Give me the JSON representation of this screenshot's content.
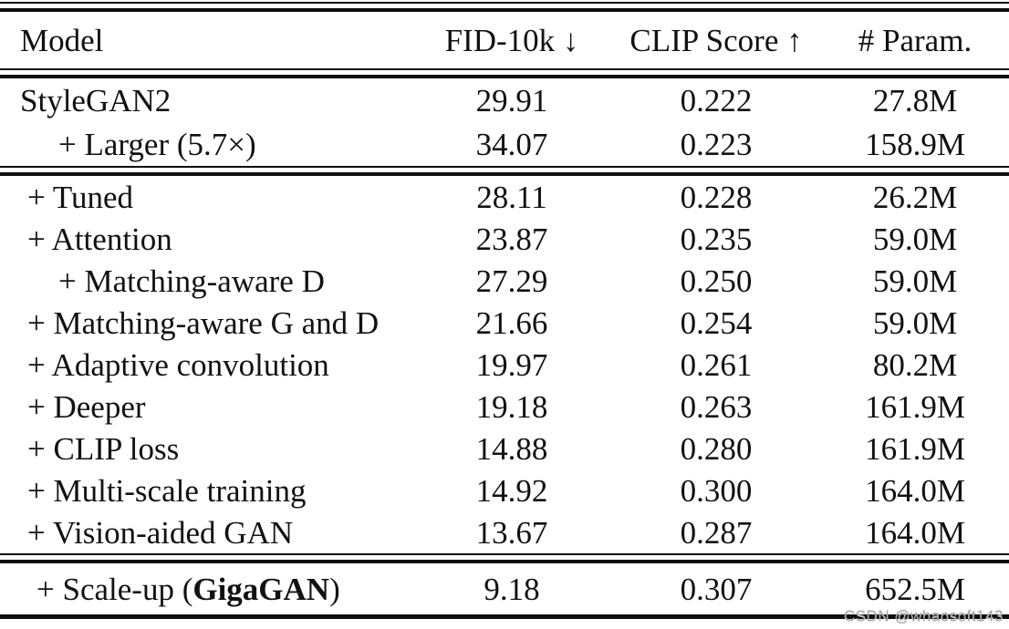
{
  "header": {
    "columns": [
      {
        "label": "Model"
      },
      {
        "label": "FID-10k ↓"
      },
      {
        "label": "CLIP Score ↑"
      },
      {
        "label": "# Param."
      }
    ]
  },
  "sections": [
    {
      "name": "baseline",
      "rows": [
        {
          "model": [
            {
              "t": "StyleGAN2"
            }
          ],
          "indent": "base",
          "fid": "29.91",
          "clip": "0.222",
          "params": "27.8M"
        },
        {
          "model": [
            {
              "t": "+ Larger (5.7×)"
            }
          ],
          "indent": "sub",
          "fid": "34.07",
          "clip": "0.223",
          "params": "158.9M"
        }
      ]
    },
    {
      "name": "ablations",
      "rows": [
        {
          "model": [
            {
              "t": "+ Tuned"
            }
          ],
          "indent": "main",
          "fid": "28.11",
          "clip": "0.228",
          "params": "26.2M"
        },
        {
          "model": [
            {
              "t": "+ Attention"
            }
          ],
          "indent": "main",
          "fid": "23.87",
          "clip": "0.235",
          "params": "59.0M"
        },
        {
          "model": [
            {
              "t": "+ Matching-aware D"
            }
          ],
          "indent": "sub",
          "fid": "27.29",
          "clip": "0.250",
          "params": "59.0M"
        },
        {
          "model": [
            {
              "t": "+ Matching-aware G and D"
            }
          ],
          "indent": "main",
          "fid": "21.66",
          "clip": "0.254",
          "params": "59.0M"
        },
        {
          "model": [
            {
              "t": "+ Adaptive convolution"
            }
          ],
          "indent": "main",
          "fid": "19.97",
          "clip": "0.261",
          "params": "80.2M"
        },
        {
          "model": [
            {
              "t": "+ Deeper"
            }
          ],
          "indent": "main",
          "fid": "19.18",
          "clip": "0.263",
          "params": "161.9M"
        },
        {
          "model": [
            {
              "t": "+ CLIP loss"
            }
          ],
          "indent": "main",
          "fid": "14.88",
          "clip": "0.280",
          "params": "161.9M"
        },
        {
          "model": [
            {
              "t": "+ Multi-scale training"
            }
          ],
          "indent": "main",
          "fid": "14.92",
          "clip": "0.300",
          "params": "164.0M"
        },
        {
          "model": [
            {
              "t": "+ Vision-aided GAN"
            }
          ],
          "indent": "main",
          "fid": "13.67",
          "clip": "0.287",
          "params": "164.0M"
        }
      ]
    },
    {
      "name": "final",
      "rows": [
        {
          "model": [
            {
              "t": "+ Scale-up ("
            },
            {
              "t": "GigaGAN",
              "bold": true
            },
            {
              "t": ")"
            }
          ],
          "indent": "final",
          "fid": "9.18",
          "clip": "0.307",
          "params": "652.5M"
        }
      ]
    }
  ],
  "watermark": "CSDN @whaosoft143",
  "colors": {
    "background": "#ffffff",
    "text": "#111111",
    "rule": "#0e0e0e",
    "watermark": "#a6a6a6"
  }
}
